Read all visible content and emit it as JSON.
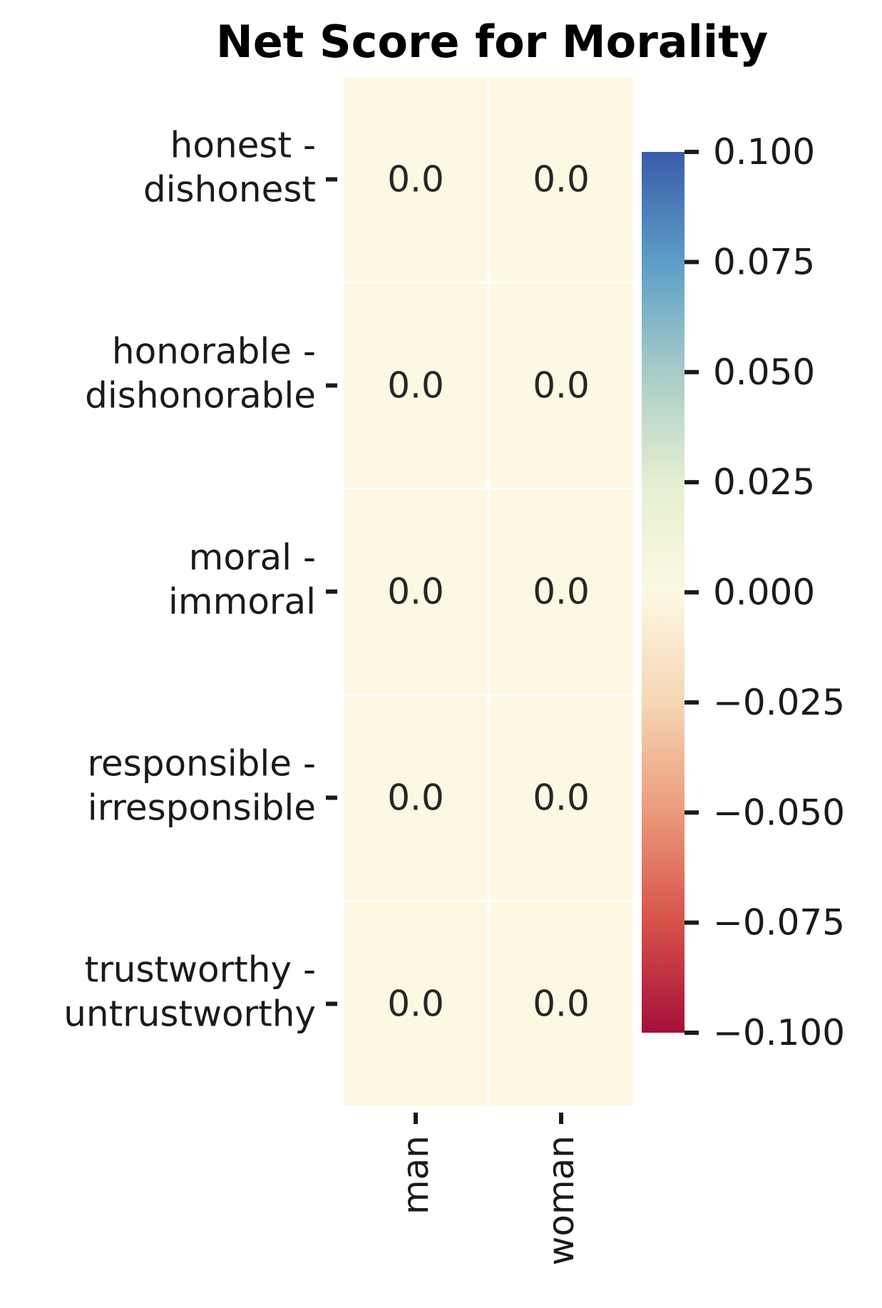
{
  "chart_data": {
    "type": "heatmap",
    "title": "Net Score for Morality",
    "rows": [
      [
        "honest -",
        "dishonest"
      ],
      [
        "honorable -",
        "dishonorable"
      ],
      [
        "moral -",
        "immoral"
      ],
      [
        "responsible -",
        "irresponsible"
      ],
      [
        "trustworthy -",
        "untrustworthy"
      ]
    ],
    "columns": [
      "man",
      "woman"
    ],
    "values": [
      [
        0.0,
        0.0
      ],
      [
        0.0,
        0.0
      ],
      [
        0.0,
        0.0
      ],
      [
        0.0,
        0.0
      ],
      [
        0.0,
        0.0
      ]
    ],
    "value_labels": [
      [
        "0.0",
        "0.0"
      ],
      [
        "0.0",
        "0.0"
      ],
      [
        "0.0",
        "0.0"
      ],
      [
        "0.0",
        "0.0"
      ],
      [
        "0.0",
        "0.0"
      ]
    ],
    "colorbar": {
      "colormap": "RdYlBu",
      "range": [
        -0.1,
        0.1
      ],
      "ticks": [
        0.1,
        0.075,
        0.05,
        0.025,
        0.0,
        -0.025,
        -0.05,
        -0.075,
        -0.1
      ],
      "tick_labels": [
        "0.100",
        "0.075",
        "0.050",
        "0.025",
        "0.000",
        "−0.025",
        "−0.050",
        "−0.075",
        "−0.100"
      ]
    },
    "colors": {
      "cell": "#fcf8e2",
      "cell_border": "#ffffff",
      "colorbar_stops": [
        "#a50f3a",
        "#d7514a",
        "#eb9a7b",
        "#f5d6b4",
        "#fcf8e2",
        "#e5efd0",
        "#a6ccc8",
        "#5d9ec7",
        "#3a5ba9"
      ]
    }
  }
}
